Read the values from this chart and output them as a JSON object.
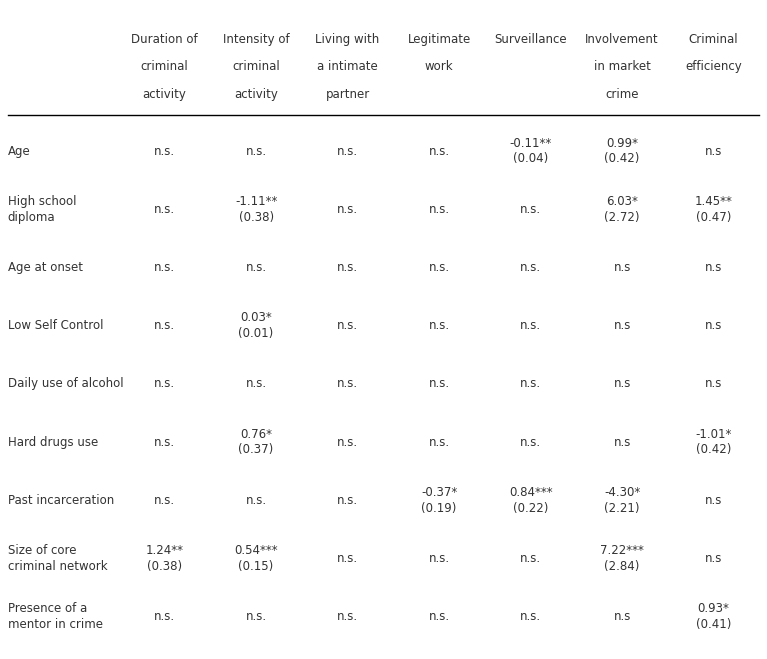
{
  "col_headers": [
    [
      "Duration of",
      "criminal",
      "activity"
    ],
    [
      "Intensity of",
      "criminal",
      "activity"
    ],
    [
      "Living with",
      "a intimate",
      "partner"
    ],
    [
      "Legitimate",
      "work",
      ""
    ],
    [
      "Surveillance",
      "",
      ""
    ],
    [
      "Involvement",
      "in market",
      "crime"
    ],
    [
      "Criminal",
      "efficiency",
      ""
    ]
  ],
  "row_labels": [
    [
      "Age",
      ""
    ],
    [
      "High school",
      "diploma"
    ],
    [
      "Age at onset",
      ""
    ],
    [
      "Low Self Control",
      ""
    ],
    [
      "Daily use of alcohol",
      ""
    ],
    [
      "Hard drugs use",
      ""
    ],
    [
      "Past incarceration",
      ""
    ],
    [
      "Size of core",
      "criminal network"
    ],
    [
      "Presence of a",
      "mentor in crime"
    ]
  ],
  "cells": [
    [
      "n.s.",
      "n.s.",
      "n.s.",
      "n.s.",
      "-0.11**\n(0.04)",
      "0.99*\n(0.42)",
      "n.s"
    ],
    [
      "n.s.",
      "-1.11**\n(0.38)",
      "n.s.",
      "n.s.",
      "n.s.",
      "6.03*\n(2.72)",
      "1.45**\n(0.47)"
    ],
    [
      "n.s.",
      "n.s.",
      "n.s.",
      "n.s.",
      "n.s.",
      "n.s",
      "n.s"
    ],
    [
      "n.s.",
      "0.03*\n(0.01)",
      "n.s.",
      "n.s.",
      "n.s.",
      "n.s",
      "n.s"
    ],
    [
      "n.s.",
      "n.s.",
      "n.s.",
      "n.s.",
      "n.s.",
      "n.s",
      "n.s"
    ],
    [
      "n.s.",
      "0.76*\n(0.37)",
      "n.s.",
      "n.s.",
      "n.s.",
      "n.s",
      "-1.01*\n(0.42)"
    ],
    [
      "n.s.",
      "n.s.",
      "n.s.",
      "-0.37*\n(0.19)",
      "0.84***\n(0.22)",
      "-4.30*\n(2.21)",
      "n.s"
    ],
    [
      "1.24**\n(0.38)",
      "0.54***\n(0.15)",
      "n.s.",
      "n.s.",
      "n.s.",
      "7.22***\n(2.84)",
      "n.s"
    ],
    [
      "n.s.",
      "n.s.",
      "n.s.",
      "n.s.",
      "n.s.",
      "n.s",
      "0.93*\n(0.41)"
    ]
  ],
  "background_color": "#ffffff",
  "text_color": "#333333",
  "header_fontsize": 8.5,
  "cell_fontsize": 8.5,
  "row_label_fontsize": 8.5
}
